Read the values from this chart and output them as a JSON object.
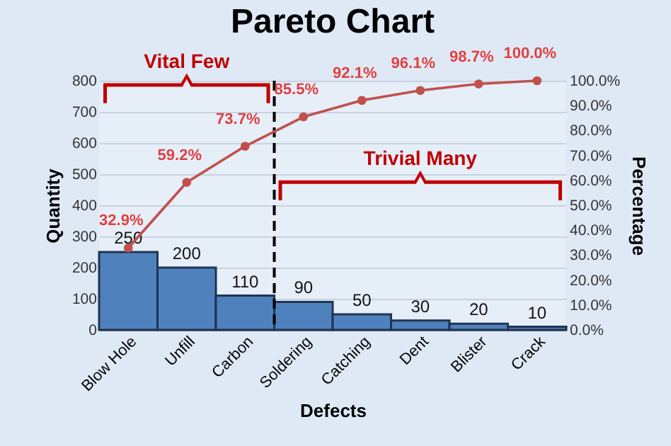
{
  "chart_data": {
    "type": "bar",
    "title": "Pareto Chart",
    "xlabel": "Defects",
    "ylabel": "Quantity",
    "y2label": "Percentage",
    "categories": [
      "Blow Hole",
      "Unfill",
      "Carbon",
      "Soldering",
      "Catching",
      "Dent",
      "Blister",
      "Crack"
    ],
    "series": [
      {
        "color": "#4f81bd",
        "values": [
          250,
          200,
          110,
          90,
          50,
          30,
          20,
          10
        ],
        "value_labels": [
          "250",
          "200",
          "110",
          "90",
          "50",
          "30",
          "20",
          "10"
        ]
      },
      {
        "type": "line",
        "axis": "y2",
        "color": "#c0504d",
        "values": [
          32.9,
          59.2,
          73.7,
          85.5,
          92.1,
          96.1,
          98.7,
          100.0
        ],
        "value_labels": [
          "32.9%",
          "59.2%",
          "73.7%",
          "85.5%",
          "92.1%",
          "96.1%",
          "98.7%",
          "100.0%"
        ]
      }
    ],
    "ylim": [
      0,
      800
    ],
    "yticks": [
      0,
      100,
      200,
      300,
      400,
      500,
      600,
      700,
      800
    ],
    "y2lim": [
      0,
      100
    ],
    "y2ticks": [
      {
        "value": 0,
        "label": "0.0%"
      },
      {
        "value": 10,
        "label": "10.0%"
      },
      {
        "value": 20,
        "label": "20.0%"
      },
      {
        "value": 30,
        "label": "30.0%"
      },
      {
        "value": 40,
        "label": "40.0%"
      },
      {
        "value": 50,
        "label": "50.0%"
      },
      {
        "value": 60,
        "label": "60.0%"
      },
      {
        "value": 70,
        "label": "70.0%"
      },
      {
        "value": 80,
        "label": "80.0%"
      },
      {
        "value": 90,
        "label": "90.0%"
      },
      {
        "value": 100,
        "label": "100.0%"
      }
    ],
    "ref_lines": [
      {
        "axis": "x",
        "value": "Carbon",
        "line_style": "dashed",
        "color": "#000000"
      }
    ],
    "annotations": [
      "Vital Few",
      "Trivial Many"
    ],
    "grid": "y",
    "marker": "circle"
  }
}
